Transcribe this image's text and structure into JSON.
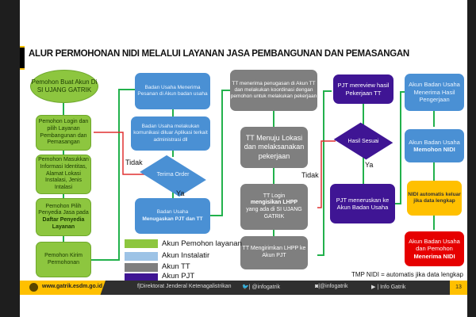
{
  "title": "ALUR PERMOHONAN NIDI MELALUI LAYANAN JASA PEMBANGUNAN DAN PEMASANGAN",
  "pemohon": {
    "start": "Pemohon Buat Akun Di SI UJANG GATRIK",
    "login": "Pemohon Login dan pilih Layanan Pembangunan dan Pemasangan",
    "masukkan": "Pemohon Masukkan Informasi Identitas, Alamat Lokasi Instalasi, Jenis Intalasi",
    "pilih": "Pemohon Pilih Penyedia Jasa pada",
    "pilih_bold": "Daftar Penyedia Layanan",
    "kirim": "Pemohon Kirim Permohonan"
  },
  "badan_usaha": {
    "terima": "Badan Usaha Menerima Pesanan di Akun badan usaha",
    "komunikasi": "Badan Usaha melakukan komunikasi diluar Aplikasi terkait administrasi dll",
    "decision": "Terima Order",
    "tugaskan": "Badan Usaha",
    "tugaskan_bold": "Menugaskan PJT dan TT",
    "no": "Tidak",
    "yes": "Ya"
  },
  "tt": {
    "terima": "TT menerima penugasan di Akun TT dan melakukan koordinasi dengan pemohon untuk melakukan pekerjaan",
    "menuju": "TT Menuju Lokasi dan melaksanakan pekerjaan",
    "login_a": "TT Login",
    "login_bold": "mengisikan LHPP",
    "login_b": "yang ada di SI UJANG GATRIK",
    "kirim": "TT Mengirimkan LHPP ke Akun PJT"
  },
  "pjt": {
    "review": "PJT mereview hasil Pekerjaan TT",
    "decision": "Hasil Sesuai",
    "teruskan": "PJT meneruskan ke Akun Badan Usaha",
    "no": "Tidak",
    "yes": "Ya"
  },
  "akun_bu": {
    "terima": "Akun Badan Usaha Menerima Hasil Pengerjaan",
    "mohon": "Akun Badan Usaha",
    "mohon_bold": "Memohon NIDI",
    "auto": "NIDI automatis keluar jika data lengkap",
    "final": "Akun Badan Usaha dan Pemohon",
    "final_bold": "Menerima NIDI"
  },
  "legend": [
    {
      "label": "Akun Pemohon layanan",
      "color": "#8dc63f"
    },
    {
      "label": "Akun Instalatir",
      "color": "#9dc3e6"
    },
    {
      "label": "Akun TT",
      "color": "#7f7f7f"
    },
    {
      "label": "Akun PJT",
      "color": "#3f1594"
    }
  ],
  "note": "TMP NIDI = automatis jika data lengkap",
  "footer": {
    "website": "www.gatrik.esdm.go.id",
    "facebook": "Direktorat Jenderal Ketenagalistrikan",
    "twitter": "@infogatrik",
    "instagram": "@infogatrik",
    "youtube": "Info Gatrik",
    "page": "13"
  }
}
